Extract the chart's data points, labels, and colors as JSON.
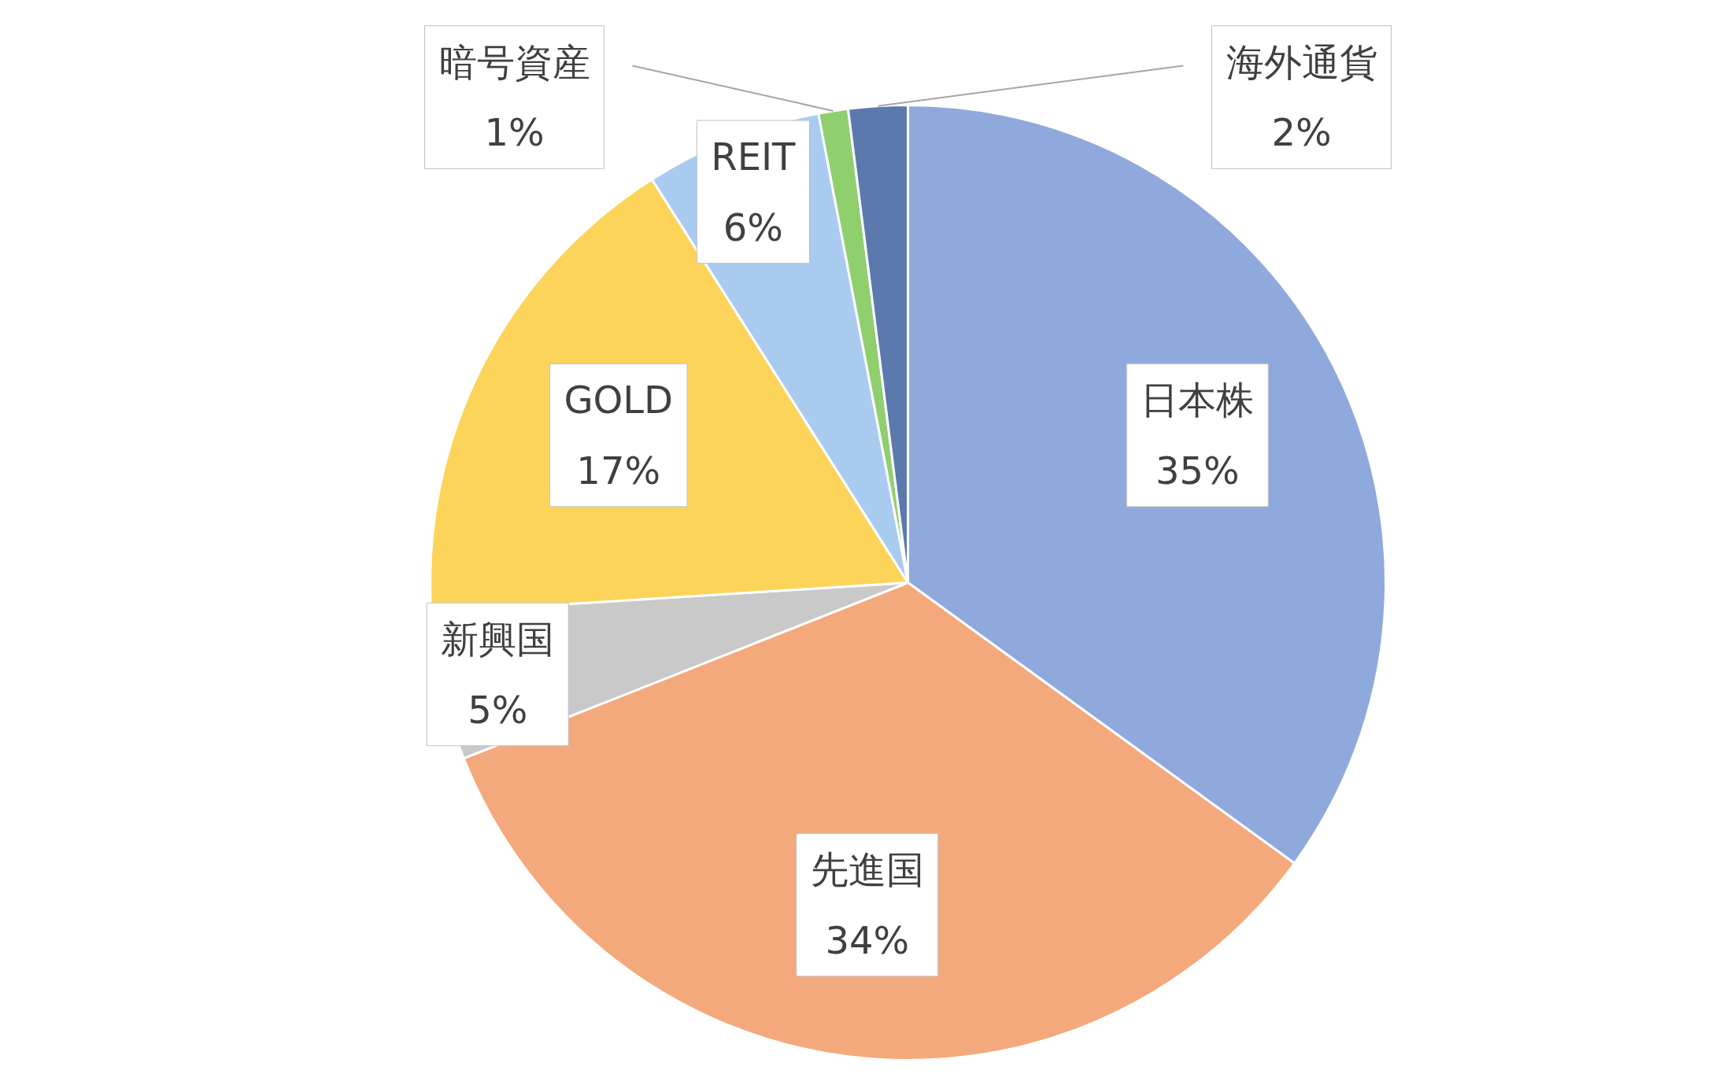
{
  "chart_data": {
    "type": "pie",
    "categories": [
      "日本株",
      "先進国",
      "新興国",
      "GOLD",
      "REIT",
      "暗号資産",
      "海外通貨"
    ],
    "values": [
      35,
      34,
      5,
      17,
      6,
      1,
      2
    ],
    "colors": [
      "#8fa9dc",
      "#f4a97c",
      "#c9c9c9",
      "#fdd45a",
      "#a9cbef",
      "#8fcf6e",
      "#5b79ad"
    ],
    "value_labels": [
      "35%",
      "34%",
      "5%",
      "17%",
      "6%",
      "1%",
      "2%"
    ]
  }
}
